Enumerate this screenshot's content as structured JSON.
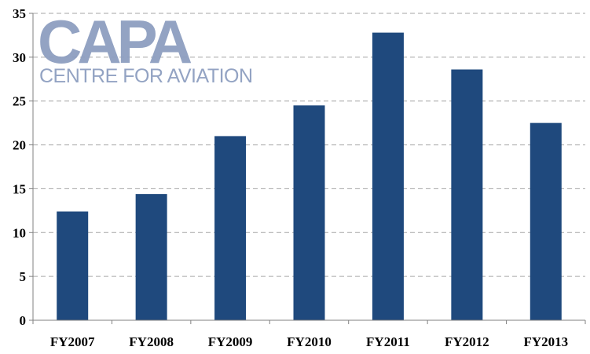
{
  "logo": {
    "main": "CAPA",
    "sub": "CENTRE FOR AVIATION",
    "color": "#8e9fc0"
  },
  "chart_data": {
    "type": "bar",
    "categories": [
      "FY2007",
      "FY2008",
      "FY2009",
      "FY2010",
      "FY2011",
      "FY2012",
      "FY2013"
    ],
    "series": [
      {
        "values": [
          12.4,
          14.4,
          21.0,
          24.5,
          32.8,
          28.6,
          22.5
        ]
      }
    ],
    "title": "",
    "xlabel": "",
    "ylabel": "",
    "ylim": [
      0,
      35
    ],
    "yticks": [
      0,
      5,
      10,
      15,
      20,
      25,
      30,
      35
    ],
    "grid": true,
    "legend": "none",
    "bar_color": "#1f497d",
    "grid_color": "#a6a6a6"
  }
}
